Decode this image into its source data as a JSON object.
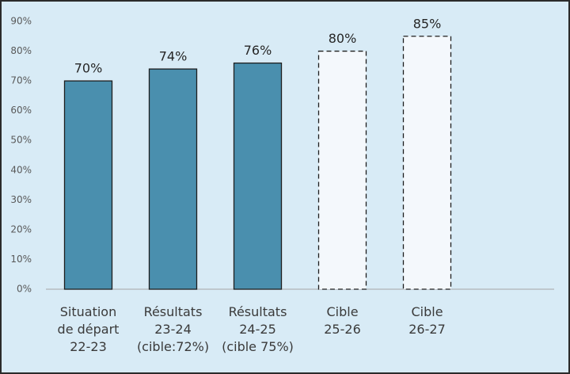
{
  "chart_data": {
    "type": "bar",
    "categories": [
      "Situation\nde départ\n22-23",
      "Résultats\n23-24\n(cible:72%)",
      "Résultats\n24-25\n(cible 75%)",
      "Cible\n25-26",
      "Cible\n26-27",
      null
    ],
    "values": [
      70,
      74,
      76,
      80,
      85,
      null
    ],
    "value_labels": [
      "70%",
      "74%",
      "76%",
      "80%",
      "85%",
      null
    ],
    "colors": [
      "#4a8fae",
      "#4a8fae",
      "#4a8fae",
      "#f4f8fc",
      "#f4f8fc",
      null
    ],
    "dashed": [
      false,
      false,
      false,
      true,
      true,
      null
    ],
    "ylim": [
      0,
      90
    ],
    "yticks": [
      {
        "value": 0,
        "label": "0%"
      },
      {
        "value": 10,
        "label": "10%"
      },
      {
        "value": 20,
        "label": "20%"
      },
      {
        "value": 30,
        "label": "30%"
      },
      {
        "value": 40,
        "label": "40%"
      },
      {
        "value": 50,
        "label": "50%"
      },
      {
        "value": 60,
        "label": "60%"
      },
      {
        "value": 70,
        "label": "70%"
      },
      {
        "value": 80,
        "label": "80%"
      },
      {
        "value": 90,
        "label": "90%"
      }
    ],
    "grid": false
  }
}
